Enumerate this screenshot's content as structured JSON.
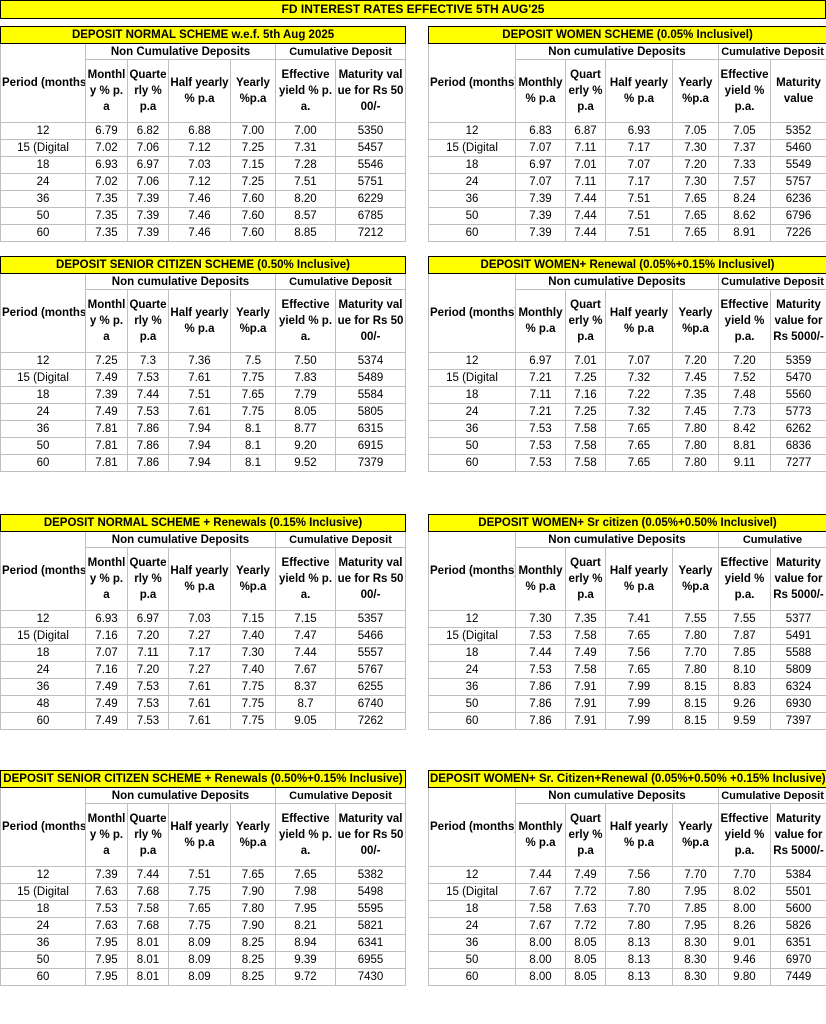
{
  "title": "FD INTEREST RATES EFFECTIVE 5TH AUG'25",
  "tables": [
    {
      "title": "DEPOSIT NORMAL SCHEME w.e.f. 5th Aug 2025",
      "groups": [
        "Non Cumulative  Deposits",
        "Cumulative Deposit"
      ],
      "columns": [
        "Period (months)",
        "Monthly % p.a",
        "Quarterly % p.a",
        "Half yearly % p.a",
        "Yearly %p.a",
        "Effective yield % p.a.",
        "Maturity value for Rs 5000/-"
      ],
      "rows": [
        [
          "12",
          "6.79",
          "6.82",
          "6.88",
          "7.00",
          "7.00",
          "5350"
        ],
        [
          "15 (Digital",
          "7.02",
          "7.06",
          "7.12",
          "7.25",
          "7.31",
          "5457"
        ],
        [
          "18",
          "6.93",
          "6.97",
          "7.03",
          "7.15",
          "7.28",
          "5546"
        ],
        [
          "24",
          "7.02",
          "7.06",
          "7.12",
          "7.25",
          "7.51",
          "5751"
        ],
        [
          "36",
          "7.35",
          "7.39",
          "7.46",
          "7.60",
          "8.20",
          "6229"
        ],
        [
          "50",
          "7.35",
          "7.39",
          "7.46",
          "7.60",
          "8.57",
          "6785"
        ],
        [
          "60",
          "7.35",
          "7.39",
          "7.46",
          "7.60",
          "8.85",
          "7212"
        ]
      ]
    },
    {
      "title": "DEPOSIT WOMEN SCHEME (0.05% Inclusivel)",
      "groups": [
        "Non cumulative  Deposits",
        "Cumulative Deposit"
      ],
      "columns": [
        "Period (months)",
        "Monthly % p.a",
        "Quarterly % p.a",
        "Half yearly % p.a",
        "Yearly %p.a",
        "Effective yield % p.a.",
        "Maturity value"
      ],
      "rows": [
        [
          "12",
          "6.83",
          "6.87",
          "6.93",
          "7.05",
          "7.05",
          "5352"
        ],
        [
          "15 (Digital",
          "7.07",
          "7.11",
          "7.17",
          "7.30",
          "7.37",
          "5460"
        ],
        [
          "18",
          "6.97",
          "7.01",
          "7.07",
          "7.20",
          "7.33",
          "5549"
        ],
        [
          "24",
          "7.07",
          "7.11",
          "7.17",
          "7.30",
          "7.57",
          "5757"
        ],
        [
          "36",
          "7.39",
          "7.44",
          "7.51",
          "7.65",
          "8.24",
          "6236"
        ],
        [
          "50",
          "7.39",
          "7.44",
          "7.51",
          "7.65",
          "8.62",
          "6796"
        ],
        [
          "60",
          "7.39",
          "7.44",
          "7.51",
          "7.65",
          "8.91",
          "7226"
        ]
      ]
    },
    {
      "title": "DEPOSIT SENIOR CITIZEN SCHEME (0.50% Inclusive)",
      "groups": [
        "Non cumulative  Deposits",
        "Cumulative Deposit"
      ],
      "columns": [
        "Period (months)",
        "Monthly % p.a",
        "Quarterly % p.a",
        "Half yearly % p.a",
        "Yearly %p.a",
        "Effective yield % p.a.",
        "Maturity value for Rs 5000/-"
      ],
      "rows": [
        [
          "12",
          "7.25",
          "7.3",
          "7.36",
          "7.5",
          "7.50",
          "5374"
        ],
        [
          "15 (Digital",
          "7.49",
          "7.53",
          "7.61",
          "7.75",
          "7.83",
          "5489"
        ],
        [
          "18",
          "7.39",
          "7.44",
          "7.51",
          "7.65",
          "7.79",
          "5584"
        ],
        [
          "24",
          "7.49",
          "7.53",
          "7.61",
          "7.75",
          "8.05",
          "5805"
        ],
        [
          "36",
          "7.81",
          "7.86",
          "7.94",
          "8.1",
          "8.77",
          "6315"
        ],
        [
          "50",
          "7.81",
          "7.86",
          "7.94",
          "8.1",
          "9.20",
          "6915"
        ],
        [
          "60",
          "7.81",
          "7.86",
          "7.94",
          "8.1",
          "9.52",
          "7379"
        ]
      ]
    },
    {
      "title": "DEPOSIT WOMEN+ Renewal (0.05%+0.15% Inclusivel)",
      "groups": [
        "Non cumulative  Deposits",
        "Cumulative Deposit"
      ],
      "columns": [
        "Period (months)",
        "Monthly % p.a",
        "Quarterly % p.a",
        "Half yearly % p.a",
        "Yearly %p.a",
        "Effective yield % p.a.",
        "Maturity value for Rs 5000/-"
      ],
      "rows": [
        [
          "12",
          "6.97",
          "7.01",
          "7.07",
          "7.20",
          "7.20",
          "5359"
        ],
        [
          "15 (Digital",
          "7.21",
          "7.25",
          "7.32",
          "7.45",
          "7.52",
          "5470"
        ],
        [
          "18",
          "7.11",
          "7.16",
          "7.22",
          "7.35",
          "7.48",
          "5560"
        ],
        [
          "24",
          "7.21",
          "7.25",
          "7.32",
          "7.45",
          "7.73",
          "5773"
        ],
        [
          "36",
          "7.53",
          "7.58",
          "7.65",
          "7.80",
          "8.42",
          "6262"
        ],
        [
          "50",
          "7.53",
          "7.58",
          "7.65",
          "7.80",
          "8.81",
          "6836"
        ],
        [
          "60",
          "7.53",
          "7.58",
          "7.65",
          "7.80",
          "9.11",
          "7277"
        ]
      ]
    },
    {
      "title": "DEPOSIT NORMAL SCHEME + Renewals (0.15% Inclusive)",
      "groups": [
        "Non cumulative  Deposits",
        "Cumulative Deposit"
      ],
      "columns": [
        "Period (months)",
        "Monthly % p.a",
        "Quarterly % p.a",
        "Half yearly % p.a",
        "Yearly %p.a",
        "Effective yield % p.a.",
        "Maturity value for Rs 5000/-"
      ],
      "rows": [
        [
          "12",
          "6.93",
          "6.97",
          "7.03",
          "7.15",
          "7.15",
          "5357"
        ],
        [
          "15 (Digital",
          "7.16",
          "7.20",
          "7.27",
          "7.40",
          "7.47",
          "5466"
        ],
        [
          "18",
          "7.07",
          "7.11",
          "7.17",
          "7.30",
          "7.44",
          "5557"
        ],
        [
          "24",
          "7.16",
          "7.20",
          "7.27",
          "7.40",
          "7.67",
          "5767"
        ],
        [
          "36",
          "7.49",
          "7.53",
          "7.61",
          "7.75",
          "8.37",
          "6255"
        ],
        [
          "48",
          "7.49",
          "7.53",
          "7.61",
          "7.75",
          "8.7",
          "6740"
        ],
        [
          "60",
          "7.49",
          "7.53",
          "7.61",
          "7.75",
          "9.05",
          "7262"
        ]
      ]
    },
    {
      "title": "DEPOSIT WOMEN+ Sr citizen (0.05%+0.50% Inclusivel)",
      "groups": [
        "Non cumulative  Deposits",
        "Cumulative"
      ],
      "columns": [
        "Period (months)",
        "Monthly % p.a",
        "Quarterly % p.a",
        "Half yearly % p.a",
        "Yearly %p.a",
        "Effective yield % p.a.",
        "Maturity value for Rs 5000/-"
      ],
      "rows": [
        [
          "12",
          "7.30",
          "7.35",
          "7.41",
          "7.55",
          "7.55",
          "5377"
        ],
        [
          "15 (Digital",
          "7.53",
          "7.58",
          "7.65",
          "7.80",
          "7.87",
          "5491"
        ],
        [
          "18",
          "7.44",
          "7.49",
          "7.56",
          "7.70",
          "7.85",
          "5588"
        ],
        [
          "24",
          "7.53",
          "7.58",
          "7.65",
          "7.80",
          "8.10",
          "5809"
        ],
        [
          "36",
          "7.86",
          "7.91",
          "7.99",
          "8.15",
          "8.83",
          "6324"
        ],
        [
          "50",
          "7.86",
          "7.91",
          "7.99",
          "8.15",
          "9.26",
          "6930"
        ],
        [
          "60",
          "7.86",
          "7.91",
          "7.99",
          "8.15",
          "9.59",
          "7397"
        ]
      ]
    },
    {
      "title": "DEPOSIT SENIOR CITIZEN SCHEME + Renewals (0.50%+0.15% Inclusive)",
      "groups": [
        "Non cumulative  Deposits",
        "Cumulative Deposit"
      ],
      "columns": [
        "Period (months)",
        "Monthly % p.a",
        "Quarterly % p.a",
        "Half yearly % p.a",
        "Yearly %p.a",
        "Effective yield % p.a.",
        "Maturity value for Rs 5000/-"
      ],
      "rows": [
        [
          "12",
          "7.39",
          "7.44",
          "7.51",
          "7.65",
          "7.65",
          "5382"
        ],
        [
          "15 (Digital",
          "7.63",
          "7.68",
          "7.75",
          "7.90",
          "7.98",
          "5498"
        ],
        [
          "18",
          "7.53",
          "7.58",
          "7.65",
          "7.80",
          "7.95",
          "5595"
        ],
        [
          "24",
          "7.63",
          "7.68",
          "7.75",
          "7.90",
          "8.21",
          "5821"
        ],
        [
          "36",
          "7.95",
          "8.01",
          "8.09",
          "8.25",
          "8.94",
          "6341"
        ],
        [
          "50",
          "7.95",
          "8.01",
          "8.09",
          "8.25",
          "9.39",
          "6955"
        ],
        [
          "60",
          "7.95",
          "8.01",
          "8.09",
          "8.25",
          "9.72",
          "7430"
        ]
      ]
    },
    {
      "title": "DEPOSIT WOMEN+ Sr. Citizen+Renewal (0.05%+0.50% +0.15% Inclusive)",
      "groups": [
        "Non cumulative  Deposits",
        "Cumulative Deposit"
      ],
      "columns": [
        "Period (months)",
        "Monthly % p.a",
        "Quarterly % p.a",
        "Half yearly % p.a",
        "Yearly %p.a",
        "Effective yield % p.a.",
        "Maturity value for Rs 5000/-"
      ],
      "rows": [
        [
          "12",
          "7.44",
          "7.49",
          "7.56",
          "7.70",
          "7.70",
          "5384"
        ],
        [
          "15 (Digital",
          "7.67",
          "7.72",
          "7.80",
          "7.95",
          "8.02",
          "5501"
        ],
        [
          "18",
          "7.58",
          "7.63",
          "7.70",
          "7.85",
          "8.00",
          "5600"
        ],
        [
          "24",
          "7.67",
          "7.72",
          "7.80",
          "7.95",
          "8.26",
          "5826"
        ],
        [
          "36",
          "8.00",
          "8.05",
          "8.13",
          "8.30",
          "9.01",
          "6351"
        ],
        [
          "50",
          "8.00",
          "8.05",
          "8.13",
          "8.30",
          "9.46",
          "6970"
        ],
        [
          "60",
          "8.00",
          "8.05",
          "8.13",
          "8.30",
          "9.80",
          "7449"
        ]
      ]
    }
  ]
}
